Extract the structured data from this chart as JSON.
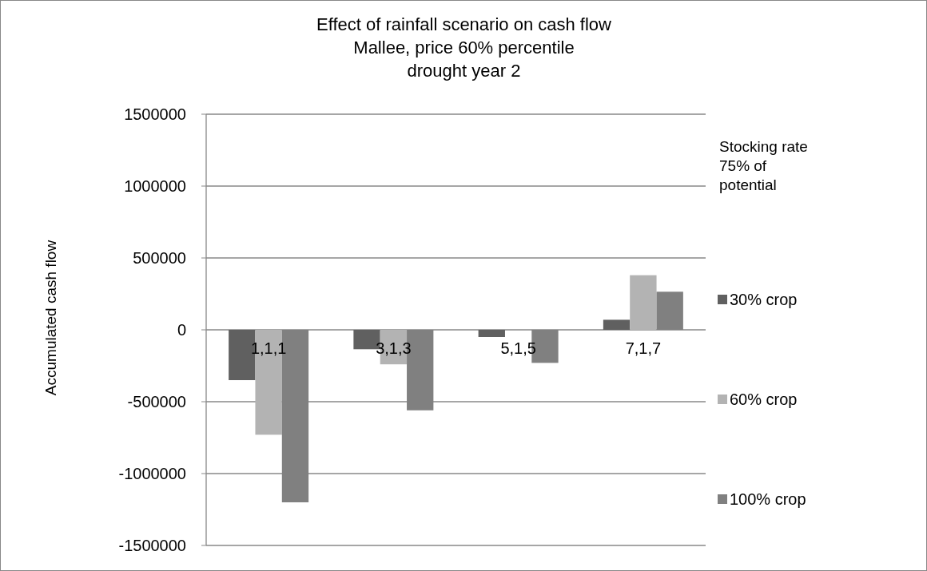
{
  "chart_data": {
    "type": "bar",
    "title": "Effect of rainfall scenario on cash flow\nMallee, price 60% percentile\ndrought year 2",
    "ylabel": "Accumulated cash flow",
    "legend_title": "Stocking rate 75% of potential",
    "categories": [
      "1,1,1",
      "3,1,3",
      "5,1,5",
      "7,1,7"
    ],
    "series": [
      {
        "name": "30% crop",
        "color": "#606060",
        "values": [
          -350000,
          -135000,
          -50000,
          70000
        ]
      },
      {
        "name": "60% crop",
        "color": "#b3b3b3",
        "values": [
          -730000,
          -240000,
          0,
          380000
        ]
      },
      {
        "name": "100% crop",
        "color": "#808080",
        "values": [
          -1200000,
          -560000,
          -230000,
          265000
        ]
      }
    ],
    "ylim": [
      -1500000,
      1500000
    ],
    "yticks": [
      -1500000,
      -1000000,
      -500000,
      0,
      500000,
      1000000,
      1500000
    ],
    "grid": "y",
    "legend": "right"
  }
}
